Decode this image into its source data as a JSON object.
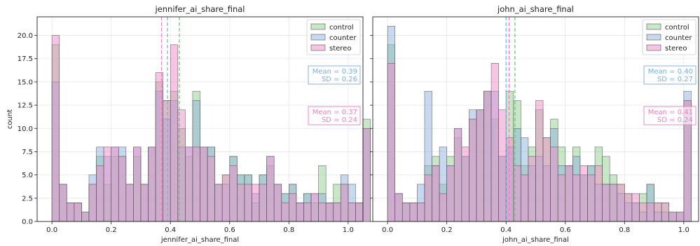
{
  "colors": {
    "control": "#8fcf8f",
    "counter": "#8fb3dd",
    "stereo": "#f08cc8",
    "control_line": "#6fbf73",
    "counter_line": "#7aaee0",
    "stereo_line": "#ec7fc0",
    "edge": "#555555",
    "grid": "#e6e6e6"
  },
  "chart_data": [
    {
      "type": "bar",
      "title": "jennifer_ai_share_final",
      "xlabel": "jennifer_ai_share_final",
      "ylabel": "count",
      "xlim": [
        -0.05,
        1.05
      ],
      "ylim": [
        0,
        22
      ],
      "xticks": [
        "0.0",
        "0.2",
        "0.4",
        "0.6",
        "0.8",
        "1.0"
      ],
      "yticks": [
        "0.0",
        "2.5",
        "5.0",
        "7.5",
        "10.0",
        "12.5",
        "15.0",
        "17.5",
        "20.0"
      ],
      "grid": true,
      "legend_position": "top-right",
      "bin_width": 0.025,
      "bin_start": 0.0,
      "series": [
        {
          "name": "control",
          "values": [
            19,
            4,
            2,
            2,
            1,
            4,
            7,
            4,
            7,
            7,
            4,
            7,
            4,
            8,
            15,
            13,
            14,
            10,
            7,
            14,
            8,
            8,
            4,
            5,
            7,
            5,
            5,
            2,
            5,
            6,
            4,
            3,
            4,
            2,
            3,
            2,
            6,
            2,
            4,
            4,
            2,
            2,
            11
          ]
        },
        {
          "name": "counter",
          "values": [
            15,
            4,
            2,
            2,
            1,
            5,
            8,
            7,
            8,
            8,
            4,
            8,
            4,
            8,
            14,
            11,
            13,
            8,
            8,
            13,
            8,
            8,
            4,
            4,
            7,
            5,
            5,
            3,
            5,
            7,
            4,
            3,
            4,
            2,
            3,
            3,
            3,
            2,
            2,
            5,
            4,
            2,
            10
          ]
        },
        {
          "name": "stereo",
          "values": [
            20,
            4,
            2,
            2,
            1,
            4,
            6,
            8,
            8,
            7,
            4,
            8,
            4,
            8,
            16,
            13,
            19,
            12,
            8,
            8,
            8,
            7,
            4,
            5,
            6,
            4,
            4,
            4,
            4,
            7,
            4,
            2,
            3,
            2,
            2,
            3,
            2,
            2,
            2,
            4,
            2,
            2,
            10
          ]
        }
      ],
      "mean_lines": {
        "control": 0.43,
        "counter": 0.39,
        "stereo": 0.37
      },
      "annotations": [
        {
          "series": "counter",
          "mean": "Mean = 0.39",
          "sd": "SD = 0.26"
        },
        {
          "series": "stereo",
          "mean": "Mean = 0.37",
          "sd": "SD = 0.24"
        }
      ]
    },
    {
      "type": "bar",
      "title": "john_ai_share_final",
      "xlabel": "john_ai_share_final",
      "ylabel": "",
      "xlim": [
        -0.05,
        1.05
      ],
      "ylim": [
        0,
        22
      ],
      "xticks": [
        "0.0",
        "0.2",
        "0.4",
        "0.6",
        "0.8",
        "1.0"
      ],
      "yticks": [],
      "grid": true,
      "legend_position": "top-right",
      "bin_width": 0.025,
      "bin_start": 0.0,
      "series": [
        {
          "name": "control",
          "values": [
            19,
            3,
            2,
            2,
            2,
            6,
            7,
            4,
            7,
            9,
            7,
            11,
            12,
            14,
            11,
            7,
            14,
            13,
            6,
            8,
            12,
            9,
            11,
            8,
            6,
            8,
            5,
            6,
            8,
            7,
            5,
            4,
            3,
            2,
            3,
            4,
            2,
            2,
            1,
            1,
            13
          ]
        },
        {
          "name": "counter",
          "values": [
            21,
            3,
            2,
            2,
            4,
            14,
            6,
            8,
            6,
            10,
            7,
            12,
            12,
            14,
            14,
            7,
            8,
            10,
            9,
            6,
            7,
            6,
            10,
            6,
            6,
            7,
            5,
            6,
            4,
            4,
            4,
            3,
            2,
            2,
            1,
            4,
            1,
            1,
            1,
            1,
            14
          ]
        },
        {
          "name": "stereo",
          "values": [
            17,
            3,
            2,
            2,
            2,
            5,
            6,
            3,
            6,
            10,
            8,
            11,
            12,
            14,
            17,
            12,
            9,
            6,
            5,
            7,
            13,
            9,
            8,
            5,
            6,
            5,
            6,
            5,
            6,
            4,
            4,
            4,
            3,
            3,
            2,
            2,
            2,
            2,
            1,
            1,
            13
          ]
        }
      ],
      "mean_lines": {
        "control": 0.43,
        "counter": 0.4,
        "stereo": 0.41
      },
      "annotations": [
        {
          "series": "counter",
          "mean": "Mean = 0.40",
          "sd": "SD = 0.27"
        },
        {
          "series": "stereo",
          "mean": "Mean = 0.41",
          "sd": "SD = 0.24"
        }
      ]
    }
  ]
}
